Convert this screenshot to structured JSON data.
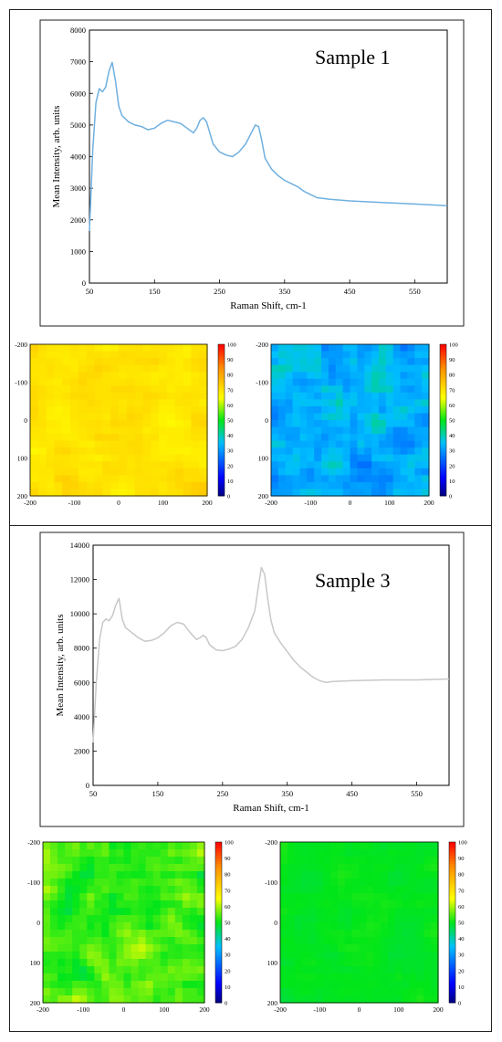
{
  "chart_data": [
    {
      "type": "line",
      "annotation": "Sample 1",
      "xlabel": "Raman Shift, cm-1",
      "ylabel": "Mean Intensity, arb. units",
      "xlim": [
        50,
        600
      ],
      "ylim": [
        0,
        8000
      ],
      "xticks": [
        50,
        150,
        250,
        350,
        450,
        550
      ],
      "yticks": [
        0,
        1000,
        2000,
        3000,
        4000,
        5000,
        6000,
        7000,
        8000
      ],
      "grid": false,
      "color": "#6fb0e0",
      "x": [
        50,
        55,
        60,
        65,
        70,
        75,
        80,
        85,
        90,
        95,
        100,
        110,
        120,
        130,
        140,
        150,
        160,
        170,
        180,
        190,
        200,
        210,
        215,
        220,
        225,
        230,
        235,
        240,
        250,
        260,
        270,
        280,
        290,
        300,
        305,
        310,
        315,
        320,
        330,
        340,
        350,
        360,
        370,
        380,
        390,
        400,
        420,
        450,
        500,
        550,
        600
      ],
      "y": [
        1650,
        4200,
        5700,
        6150,
        6050,
        6200,
        6700,
        6980,
        6400,
        5600,
        5300,
        5100,
        5000,
        4950,
        4850,
        4900,
        5050,
        5150,
        5100,
        5050,
        4900,
        4750,
        4900,
        5150,
        5230,
        5100,
        4750,
        4400,
        4150,
        4050,
        4000,
        4150,
        4400,
        4800,
        5000,
        4950,
        4500,
        3950,
        3600,
        3400,
        3250,
        3150,
        3050,
        2900,
        2800,
        2700,
        2650,
        2600,
        2550,
        2500,
        2450
      ]
    },
    {
      "type": "heatmap",
      "xlim": [
        -200,
        200
      ],
      "ylim": [
        -200,
        200
      ],
      "xticks": [
        -200,
        -100,
        0,
        100,
        200
      ],
      "yticks": [
        -200,
        -100,
        0,
        100,
        200
      ],
      "colorbar_ticks": [
        0,
        10,
        20,
        30,
        40,
        50,
        60,
        70,
        80,
        90,
        100
      ],
      "colorbar_range": [
        0,
        100
      ],
      "mean_value": 70,
      "spread": 3
    },
    {
      "type": "heatmap",
      "xlim": [
        -200,
        200
      ],
      "ylim": [
        -200,
        200
      ],
      "xticks": [
        -200,
        -100,
        0,
        100,
        200
      ],
      "yticks": [
        -200,
        -100,
        0,
        100,
        200
      ],
      "colorbar_ticks": [
        0,
        10,
        20,
        30,
        40,
        50,
        60,
        70,
        80,
        90,
        100
      ],
      "colorbar_range": [
        0,
        100
      ],
      "mean_value": 33,
      "spread": 7
    },
    {
      "type": "line",
      "annotation": "Sample 3",
      "xlabel": "Raman Shift, cm-1",
      "ylabel": "Mean Intensity, arb. units",
      "xlim": [
        50,
        600
      ],
      "ylim": [
        0,
        14000
      ],
      "xticks": [
        50,
        150,
        250,
        350,
        450,
        550
      ],
      "yticks": [
        0,
        2000,
        4000,
        6000,
        8000,
        10000,
        12000,
        14000
      ],
      "grid": false,
      "color": "#c8c8c8",
      "x": [
        50,
        55,
        60,
        65,
        70,
        75,
        80,
        85,
        90,
        95,
        100,
        110,
        120,
        130,
        140,
        150,
        160,
        170,
        180,
        190,
        200,
        210,
        215,
        220,
        225,
        230,
        240,
        250,
        260,
        270,
        280,
        290,
        300,
        305,
        310,
        315,
        320,
        325,
        330,
        340,
        350,
        360,
        370,
        380,
        390,
        400,
        410,
        420,
        450,
        500,
        550,
        600
      ],
      "y": [
        2500,
        6000,
        8500,
        9500,
        9700,
        9600,
        9900,
        10500,
        10900,
        9700,
        9200,
        8900,
        8600,
        8400,
        8450,
        8600,
        8900,
        9300,
        9500,
        9400,
        8900,
        8500,
        8600,
        8750,
        8600,
        8200,
        7900,
        7850,
        7950,
        8100,
        8500,
        9200,
        10200,
        11500,
        12700,
        12300,
        10800,
        9600,
        8900,
        8300,
        7800,
        7300,
        6900,
        6600,
        6300,
        6100,
        6000,
        6050,
        6100,
        6150,
        6150,
        6200
      ]
    },
    {
      "type": "heatmap",
      "xlim": [
        -200,
        200
      ],
      "ylim": [
        -200,
        200
      ],
      "xticks": [
        -200,
        -100,
        0,
        100,
        200
      ],
      "yticks": [
        -200,
        -100,
        0,
        100,
        200
      ],
      "colorbar_ticks": [
        0,
        10,
        20,
        30,
        40,
        50,
        60,
        70,
        80,
        90,
        100
      ],
      "colorbar_range": [
        0,
        100
      ],
      "mean_value": 54,
      "spread": 6
    },
    {
      "type": "heatmap",
      "xlim": [
        -200,
        200
      ],
      "ylim": [
        -200,
        200
      ],
      "xticks": [
        -200,
        -100,
        0,
        100,
        200
      ],
      "yticks": [
        -200,
        -100,
        0,
        100,
        200
      ],
      "colorbar_ticks": [
        0,
        10,
        20,
        30,
        40,
        50,
        60,
        70,
        80,
        90,
        100
      ],
      "colorbar_range": [
        0,
        100
      ],
      "mean_value": 50,
      "spread": 1.5
    }
  ]
}
